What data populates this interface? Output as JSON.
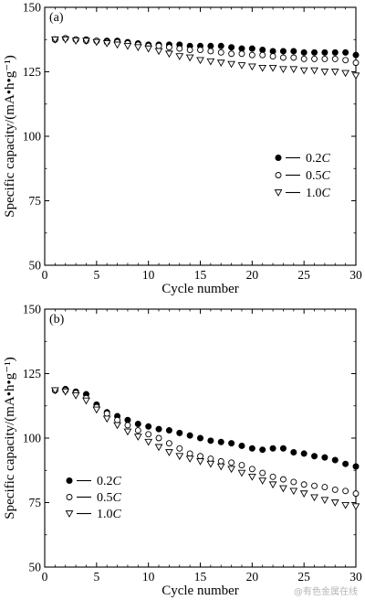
{
  "chart_data": [
    {
      "panel": "(a)",
      "type": "scatter",
      "xlabel": "Cycle number",
      "ylabel": "Specific capacity/(mA•h•g⁻¹)",
      "xlim": [
        0,
        30
      ],
      "ylim": [
        50,
        150
      ],
      "xticks": [
        0,
        5,
        10,
        15,
        20,
        25,
        30
      ],
      "yticks": [
        50,
        75,
        100,
        125,
        150
      ],
      "legend_placement": "right-middle",
      "x": [
        1,
        2,
        3,
        4,
        5,
        6,
        7,
        8,
        9,
        10,
        11,
        12,
        13,
        14,
        15,
        16,
        17,
        18,
        19,
        20,
        21,
        22,
        23,
        24,
        25,
        26,
        27,
        28,
        29,
        30
      ],
      "series": [
        {
          "name": "0.2C",
          "marker": "filled-circle",
          "values": [
            137.5,
            138,
            137.5,
            137.5,
            137,
            137,
            137,
            136.5,
            136,
            135.5,
            135.5,
            135.5,
            135.5,
            135,
            135,
            135,
            135,
            134.5,
            134,
            134,
            133.5,
            133,
            133,
            133,
            132.5,
            132.5,
            132.5,
            132.5,
            132.5,
            131.5
          ]
        },
        {
          "name": "0.5C",
          "marker": "open-circle",
          "values": [
            137.5,
            138,
            137.5,
            137,
            137,
            136.5,
            136.5,
            136,
            135.5,
            135,
            135,
            134.5,
            134,
            133.5,
            133.5,
            133,
            132.5,
            132,
            132,
            131.5,
            131.5,
            131,
            130.5,
            130.5,
            130,
            130,
            130,
            130,
            129.5,
            128.5
          ]
        },
        {
          "name": "1.0C",
          "marker": "open-triangle-down",
          "values": [
            137.5,
            137.5,
            137,
            137,
            136.5,
            136,
            135.5,
            135,
            134.5,
            134,
            133,
            132,
            131,
            130.5,
            129.5,
            129,
            128.5,
            128,
            127.5,
            127,
            126.5,
            126.5,
            126,
            126,
            125.5,
            125.5,
            125,
            125,
            124.5,
            123.5
          ]
        }
      ]
    },
    {
      "panel": "(b)",
      "type": "scatter",
      "xlabel": "Cycle number",
      "ylabel": "Specific capacity/(mA•h•g⁻¹)",
      "xlim": [
        0,
        30
      ],
      "ylim": [
        50,
        150
      ],
      "xticks": [
        0,
        5,
        10,
        15,
        20,
        25,
        30
      ],
      "yticks": [
        50,
        75,
        100,
        125,
        150
      ],
      "legend_placement": "left-bottom",
      "x": [
        1,
        2,
        3,
        4,
        5,
        6,
        7,
        8,
        9,
        10,
        11,
        12,
        13,
        14,
        15,
        16,
        17,
        18,
        19,
        20,
        21,
        22,
        23,
        24,
        25,
        26,
        27,
        28,
        29,
        30
      ],
      "series": [
        {
          "name": "0.2C",
          "marker": "filled-circle",
          "values": [
            118.5,
            119,
            118,
            117,
            113,
            110,
            108.5,
            107,
            105.5,
            104.5,
            103.5,
            103,
            102,
            101,
            100,
            99,
            98.5,
            98,
            97,
            96,
            95.5,
            96,
            96,
            94.5,
            94,
            93,
            92.5,
            91.5,
            90,
            89
          ]
        },
        {
          "name": "0.5C",
          "marker": "open-circle",
          "values": [
            118.5,
            118.5,
            117.5,
            115.5,
            112,
            109.5,
            107,
            105,
            103,
            101.5,
            100,
            98,
            96,
            94,
            93,
            92,
            91,
            90.5,
            89.5,
            88,
            86.5,
            85,
            84,
            83,
            82,
            81.5,
            81,
            80,
            79.5,
            78.5
          ]
        },
        {
          "name": "1.0C",
          "marker": "open-triangle-down",
          "values": [
            118.5,
            118,
            116.5,
            114.5,
            111,
            107.5,
            105,
            102.5,
            100.5,
            98.5,
            96.5,
            94.5,
            93,
            92,
            91,
            90,
            89,
            88,
            86.5,
            85,
            83.5,
            82,
            80.5,
            79.5,
            78.5,
            77,
            76,
            75,
            74,
            73.5
          ]
        }
      ]
    }
  ],
  "watermark": "@有色金属在线"
}
